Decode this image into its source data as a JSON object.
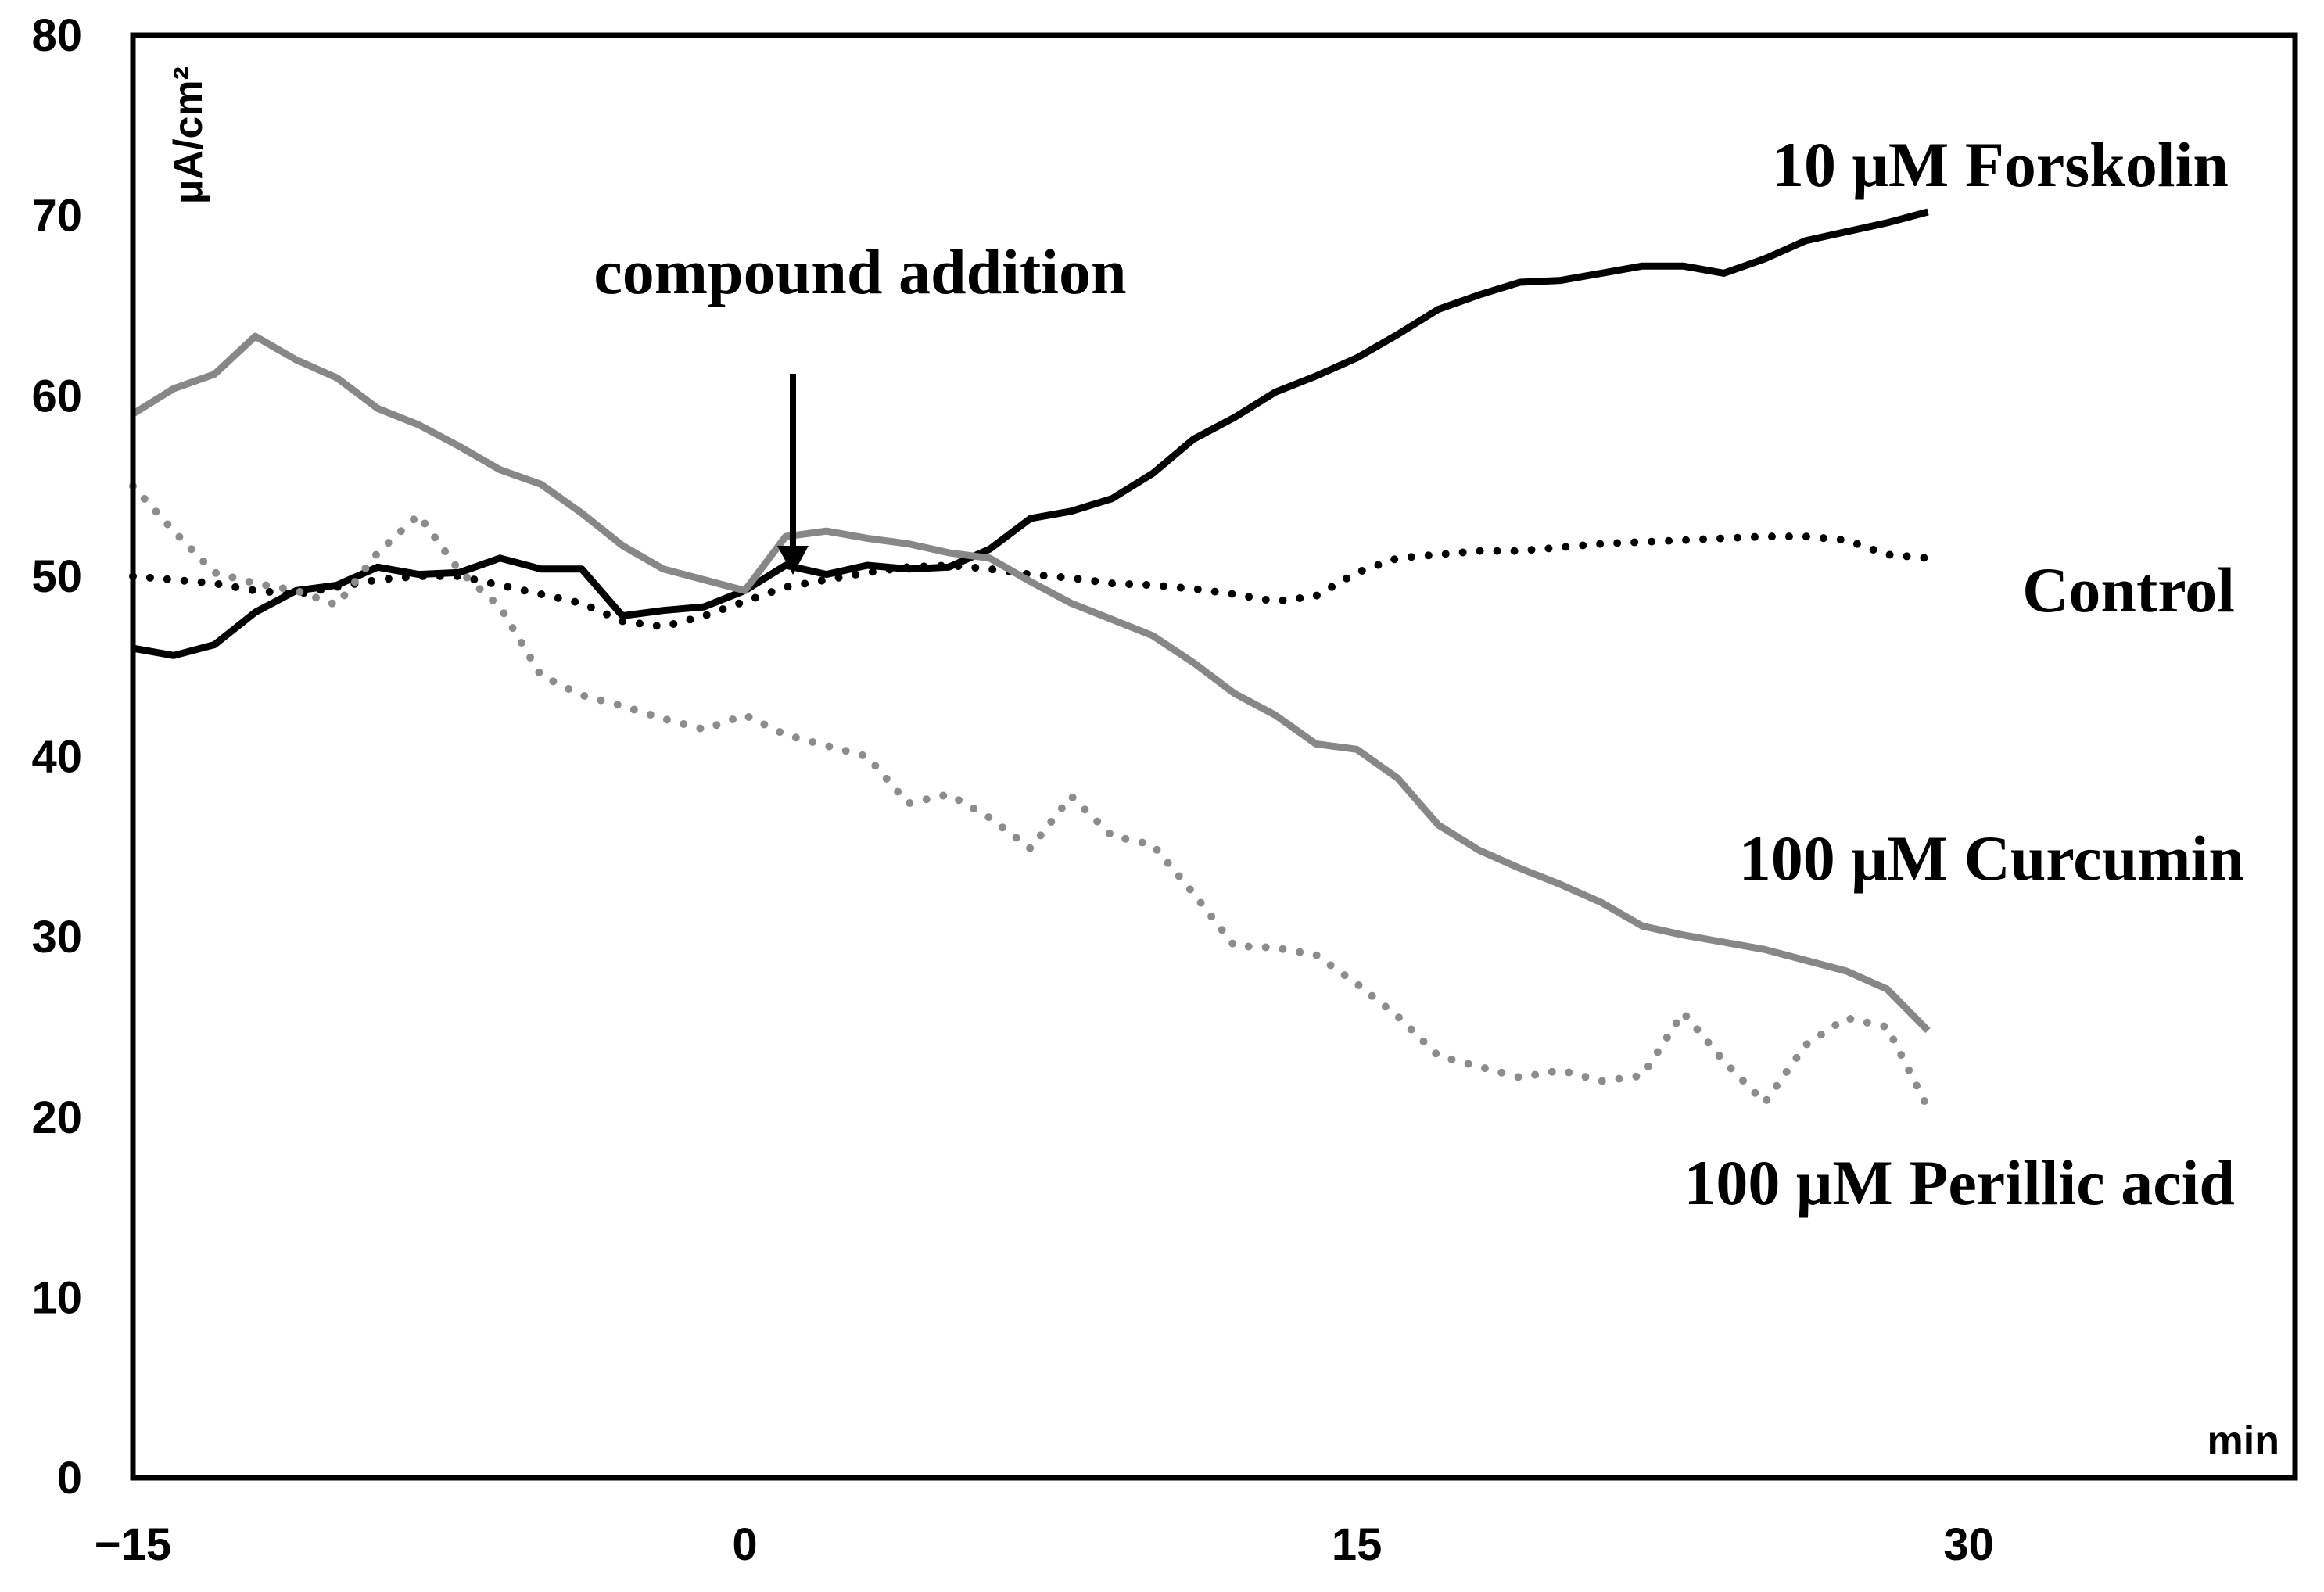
{
  "chart_data": {
    "type": "line",
    "title": "",
    "xlabel": "min",
    "ylabel": "μA/cm²",
    "xlim": [
      -15,
      38
    ],
    "ylim": [
      0,
      80
    ],
    "x_ticks": [
      -15,
      0,
      15,
      30
    ],
    "x_tick_labels": [
      "−15",
      "0",
      "15",
      "30"
    ],
    "y_ticks": [
      0,
      10,
      20,
      30,
      40,
      50,
      60,
      70,
      80
    ],
    "y_tick_labels": [
      "0",
      "10",
      "20",
      "30",
      "40",
      "50",
      "60",
      "70",
      "80"
    ],
    "grid": false,
    "annotation": {
      "text": "compound addition",
      "x": 0,
      "arrow_from_y": 62,
      "arrow_to_y": 49
    },
    "series": [
      {
        "name": "10 μM Forskolin",
        "label": "10 μM Forskolin",
        "color": "#000000",
        "style": "solid",
        "x": [
          -15,
          -14,
          -13,
          -12,
          -11,
          -10,
          -9,
          -8,
          -7,
          -6,
          -5,
          -4,
          -3,
          -2,
          -1,
          0,
          1,
          2,
          3,
          4,
          5,
          6,
          7,
          8,
          9,
          10,
          11,
          12,
          13,
          14,
          15,
          16,
          17,
          18,
          19,
          20,
          21,
          22,
          23,
          24,
          25,
          26,
          27,
          28,
          29
        ],
        "y": [
          46,
          45.6,
          46.2,
          48,
          49.2,
          49.5,
          50.5,
          50.1,
          50.2,
          51,
          50.4,
          50.4,
          47.8,
          48.1,
          48.3,
          49.2,
          50.6,
          50.1,
          50.6,
          50.4,
          50.5,
          51.5,
          53.2,
          53.6,
          54.3,
          55.7,
          57.6,
          58.8,
          60.2,
          61.1,
          62.1,
          63.4,
          64.8,
          65.6,
          66.3,
          66.4,
          66.8,
          67.2,
          67.2,
          66.8,
          67.6,
          68.6,
          69.1,
          69.6,
          70.2
        ]
      },
      {
        "name": "Control",
        "label": "Control",
        "color": "#000000",
        "style": "dotted",
        "x": [
          -15,
          -14,
          -13,
          -12,
          -11,
          -10,
          -9,
          -8,
          -7,
          -6,
          -5,
          -4,
          -3,
          -2,
          -1,
          0,
          1,
          2,
          3,
          4,
          5,
          6,
          7,
          8,
          9,
          10,
          11,
          12,
          13,
          14,
          15,
          16,
          17,
          18,
          19,
          20,
          21,
          22,
          23,
          24,
          25,
          26,
          27,
          28,
          29
        ],
        "y": [
          50,
          49.8,
          49.6,
          49.2,
          49,
          49.4,
          49.8,
          50,
          50,
          49.5,
          49,
          48.5,
          47.5,
          47.2,
          47.8,
          48.6,
          49.4,
          49.8,
          50.2,
          50.5,
          50.6,
          50.4,
          50.1,
          49.9,
          49.6,
          49.5,
          49.3,
          49,
          48.6,
          48.9,
          50.2,
          51,
          51.2,
          51.4,
          51.4,
          51.6,
          51.8,
          51.9,
          52,
          52.1,
          52.2,
          52.2,
          52,
          51.2,
          51
        ]
      },
      {
        "name": "100 μM Curcumin",
        "label": "100 μM Curcumin",
        "color": "#878787",
        "style": "solid",
        "x": [
          -15,
          -14,
          -13,
          -12,
          -11,
          -10,
          -9,
          -8,
          -7,
          -6,
          -5,
          -4,
          -3,
          -2,
          -1,
          0,
          1,
          2,
          3,
          4,
          5,
          6,
          7,
          8,
          9,
          10,
          11,
          12,
          13,
          14,
          15,
          16,
          17,
          18,
          19,
          20,
          21,
          22,
          23,
          24,
          25,
          26,
          27,
          28,
          29
        ],
        "y": [
          59,
          60.4,
          61.2,
          63.3,
          62,
          61,
          59.3,
          58.4,
          57.2,
          55.9,
          55.1,
          53.5,
          51.7,
          50.4,
          49.8,
          49.2,
          52.2,
          52.5,
          52.1,
          51.8,
          51.3,
          51,
          49.7,
          48.5,
          47.6,
          46.7,
          45.2,
          43.5,
          42.3,
          40.7,
          40.4,
          38.8,
          36.2,
          34.8,
          33.8,
          32.9,
          31.9,
          30.6,
          30.1,
          29.7,
          29.3,
          28.7,
          28.1,
          27.1,
          24.8
        ]
      },
      {
        "name": "100 μM Perillic acid",
        "label": "100 μM Perillic acid",
        "color": "#8c8c8c",
        "style": "dotted",
        "x": [
          -15,
          -14,
          -13,
          -12,
          -11,
          -10,
          -9,
          -8,
          -7,
          -6,
          -5,
          -4,
          -3,
          -2,
          -1,
          0,
          1,
          2,
          3,
          4,
          5,
          6,
          7,
          8,
          9,
          10,
          11,
          12,
          13,
          14,
          15,
          16,
          17,
          18,
          19,
          20,
          21,
          22,
          23,
          24,
          25,
          26,
          27,
          28,
          29
        ],
        "y": [
          55,
          52.5,
          50.2,
          49.6,
          49.2,
          48.4,
          51.3,
          53.4,
          50.3,
          48.3,
          44.5,
          43.4,
          42.8,
          42.1,
          41.5,
          42.3,
          41.2,
          40.6,
          40,
          37.4,
          37.9,
          36.6,
          34.9,
          37.8,
          35.6,
          35.1,
          32.4,
          29.5,
          29.4,
          29,
          27.4,
          25.6,
          23.4,
          22.8,
          22.2,
          22.6,
          22,
          22.3,
          25.8,
          23.1,
          20.8,
          24,
          25.5,
          25,
          20.5
        ]
      }
    ]
  }
}
